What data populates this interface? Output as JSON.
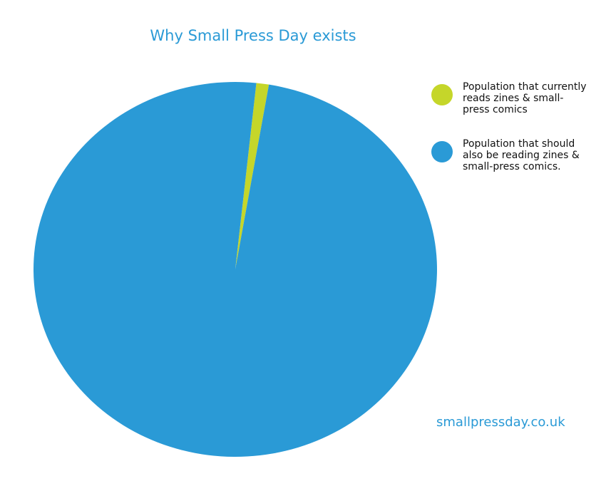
{
  "chart_data": {
    "type": "pie",
    "title": "Why Small Press Day exists",
    "categories": [
      "Population that currently reads zines & small-press comics",
      "Population that should also be reading zines & small-press comics."
    ],
    "values": [
      1,
      99
    ],
    "colors": [
      "#c5d62a",
      "#2a9ad6"
    ],
    "footer": "smallpressday.co.uk"
  }
}
